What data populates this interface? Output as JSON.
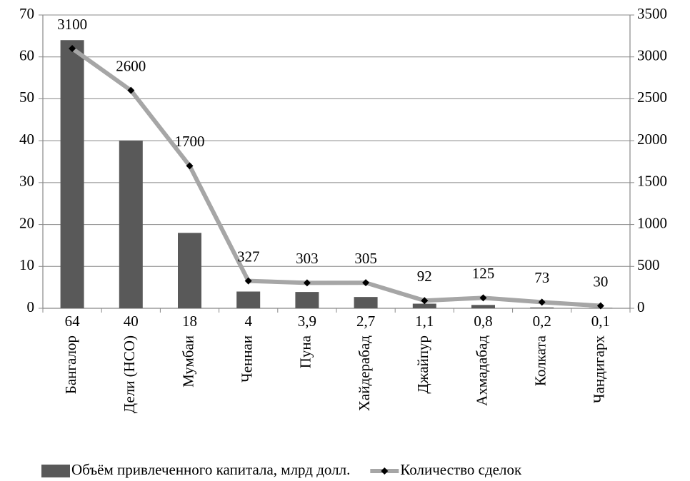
{
  "chart_data": {
    "type": "combo",
    "categories": [
      "Бангалор",
      "Дели (НСО)",
      "Мумбаи",
      "Ченнаи",
      "Пуна",
      "Хайдерабад",
      "Джайпур",
      "Ахмадабад",
      "Колката",
      "Чандигарх"
    ],
    "series": [
      {
        "name": "Объём привлеченного капитала, млрд долл.",
        "type": "bar",
        "color": "#595959",
        "values": [
          64,
          40,
          18,
          4,
          3.9,
          2.7,
          1.1,
          0.8,
          0.2,
          0.1
        ],
        "value_labels": [
          "64",
          "40",
          "18",
          "4",
          "3,9",
          "2,7",
          "1,1",
          "0,8",
          "0,2",
          "0,1"
        ]
      },
      {
        "name": "Количество сделок",
        "type": "line",
        "axis": "y2",
        "color": "#a6a6a6",
        "marker_color": "#000000",
        "values": [
          3100,
          2600,
          1700,
          327,
          303,
          305,
          92,
          125,
          73,
          30
        ]
      }
    ],
    "ylim": [
      0,
      70
    ],
    "yticks": [
      0,
      10,
      20,
      30,
      40,
      50,
      60,
      70
    ],
    "y2lim": [
      0,
      3500
    ],
    "y2ticks": [
      0,
      500,
      1000,
      1500,
      2000,
      2500,
      3000,
      3500
    ],
    "grid": true,
    "legend": "bottom"
  }
}
